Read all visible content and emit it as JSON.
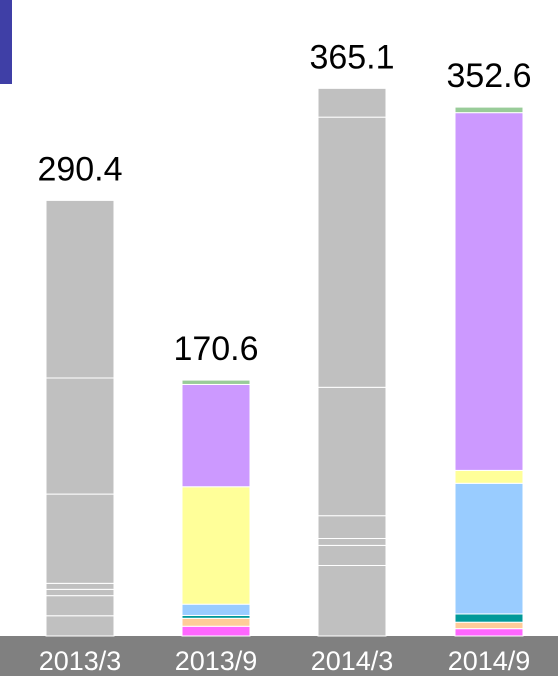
{
  "chart_data": {
    "type": "bar",
    "stacked": true,
    "categories": [
      "2013/3",
      "2013/9",
      "2014/3",
      "2014/9"
    ],
    "totals_labels": [
      "290.4",
      "170.6",
      "365.1",
      "352.6"
    ],
    "totals": [
      290.4,
      170.6,
      365.1,
      352.6
    ],
    "xaxis_band_color": "#808080",
    "xaxis_text_color": "#ffffff",
    "colors": {
      "pink": "#ff66ff",
      "peach": "#ffcc99",
      "teal": "#009999",
      "light_blue": "#99ccff",
      "yellow": "#ffff99",
      "purple": "#cc99ff",
      "green": "#99cc99",
      "gray": "#c0c0c0"
    },
    "stacks": [
      [
        {
          "value": 13.5,
          "color": "#c0c0c0"
        },
        {
          "value": 13.4,
          "color": "#c0c0c0"
        },
        {
          "value": 4.2,
          "color": "#c0c0c0"
        },
        {
          "value": 4.0,
          "color": "#c0c0c0"
        },
        {
          "value": 59.5,
          "color": "#c0c0c0"
        },
        {
          "value": 77.4,
          "color": "#c0c0c0"
        },
        {
          "value": 118.4,
          "color": "#c0c0c0"
        }
      ],
      [
        {
          "value": 6.5,
          "color": "#ff66ff"
        },
        {
          "value": 5.3,
          "color": "#ffcc99"
        },
        {
          "value": 1.9,
          "color": "#009999"
        },
        {
          "value": 7.5,
          "color": "#99ccff"
        },
        {
          "value": 78.3,
          "color": "#ffff99"
        },
        {
          "value": 68.2,
          "color": "#cc99ff"
        },
        {
          "value": 2.9,
          "color": "#99cc99"
        }
      ],
      [
        {
          "value": 47.0,
          "color": "#c0c0c0"
        },
        {
          "value": 13.4,
          "color": "#c0c0c0"
        },
        {
          "value": 4.6,
          "color": "#c0c0c0"
        },
        {
          "value": 15.2,
          "color": "#c0c0c0"
        },
        {
          "value": 85.6,
          "color": "#c0c0c0"
        },
        {
          "value": 180.1,
          "color": "#c0c0c0"
        },
        {
          "value": 19.2,
          "color": "#c0c0c0"
        }
      ],
      [
        {
          "value": 4.9,
          "color": "#ff66ff"
        },
        {
          "value": 4.3,
          "color": "#ffcc99"
        },
        {
          "value": 5.5,
          "color": "#009999"
        },
        {
          "value": 87.1,
          "color": "#99ccff"
        },
        {
          "value": 8.6,
          "color": "#ffff99"
        },
        {
          "value": 238.5,
          "color": "#cc99ff"
        },
        {
          "value": 3.7,
          "color": "#99cc99"
        }
      ]
    ]
  }
}
